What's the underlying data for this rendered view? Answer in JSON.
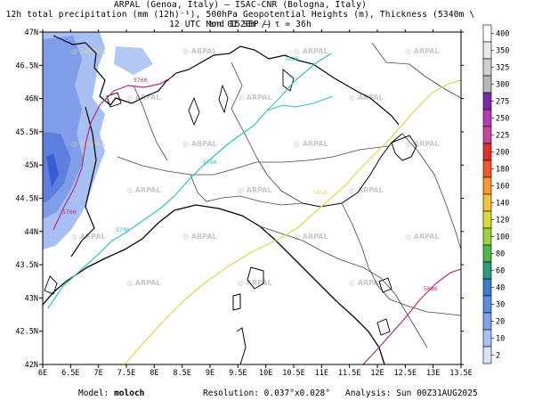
{
  "header": {
    "line1": "ARPAL (Genoa, Italy)  —  ISAC-CNR (Bologna, Italy)",
    "line2": "12h total precipitation (mm (12h)⁻¹), 500hPa Geopotential Heights (m), Thickness (5340m \\ and 1520m /)",
    "line3": "12 UTC Mon 01 SEP  —  τ = 36h"
  },
  "map": {
    "lon_ticks": [
      "6E",
      "6.5E",
      "7E",
      "7.5E",
      "8E",
      "8.5E",
      "9E",
      "9.5E",
      "10E",
      "10.5E",
      "11E",
      "11.5E",
      "12E",
      "12.5E",
      "13E",
      "13.5E"
    ],
    "lat_ticks": [
      "47N",
      "46.5N",
      "46N",
      "45.5N",
      "45N",
      "44.5N",
      "44N",
      "43.5N",
      "43N",
      "42.5N",
      "42N"
    ],
    "watermark": "ARPAL",
    "contour_labels": [
      "5760",
      "5820",
      "5790",
      "5850",
      "5700",
      "5760",
      "5880"
    ],
    "colors": {
      "coast": "#000000",
      "border": "#333333",
      "gph_cyan": "#33c2c2",
      "thick_yellow": "#d9d94a",
      "thick_magenta": "#b0307a",
      "precip_light": "#a8bff2",
      "precip_mid": "#7f9de8",
      "precip_dark": "#5c7fe0"
    }
  },
  "colorbar": {
    "levels": [
      "400",
      "350",
      "325",
      "300",
      "275",
      "250",
      "225",
      "200",
      "180",
      "160",
      "140",
      "120",
      "100",
      "80",
      "60",
      "40",
      "30",
      "20",
      "10",
      "2"
    ],
    "colors": [
      "#ffffff",
      "#e8e8e8",
      "#d0d0d0",
      "#b8b8b8",
      "#7a2aa8",
      "#b43bb4",
      "#c8489a",
      "#e0302a",
      "#f05a28",
      "#f79a2e",
      "#f4c43a",
      "#d8dc3a",
      "#9ed23a",
      "#4cb848",
      "#2d9a7a",
      "#3a7ec8",
      "#5c8ce0",
      "#7fa2ea",
      "#a8bff2",
      "#d8e2f8"
    ]
  },
  "footer": {
    "model_label": "Model:",
    "model_value": "moloch",
    "resolution": "Resolution: 0.037°x0.028°",
    "analysis": "Analysis: Sun 00Z31AUG2025"
  }
}
